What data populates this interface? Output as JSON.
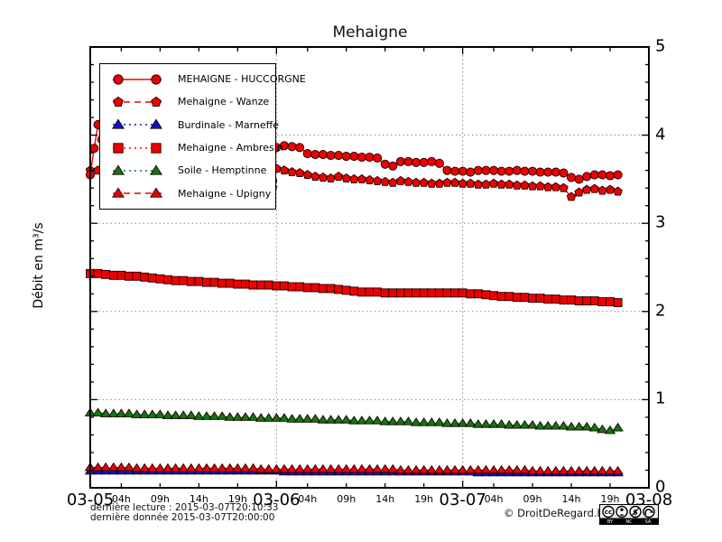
{
  "title": "Mehaigne",
  "y_axis": {
    "label": "Débit en m³/s",
    "min": 0,
    "max": 5,
    "ticks": [
      0,
      1,
      2,
      3,
      4,
      5
    ],
    "minor_step": 0.2,
    "gridlines": [
      1,
      2,
      3,
      4
    ]
  },
  "x_axis": {
    "date_labels": [
      "03-05",
      "03-06",
      "03-07",
      "03-08"
    ],
    "date_hours": [
      0,
      24,
      48,
      72
    ],
    "hour_labels": [
      "04h",
      "09h",
      "14h",
      "19h"
    ],
    "hour_offsets": [
      4,
      9,
      14,
      19
    ],
    "hours_span": 72,
    "grid_hours": [
      24,
      48
    ]
  },
  "legend": [
    {
      "label": "MEHAIGNE - HUCCORGNE",
      "marker": "circle",
      "line": "solid",
      "color": "#ee0000"
    },
    {
      "label": "Mehaigne - Wanze",
      "marker": "pentagon",
      "line": "dashed",
      "color": "#ee0000"
    },
    {
      "label": "Burdinale - Marneffe",
      "marker": "triangle",
      "line": "dotted",
      "color": "#1111cc"
    },
    {
      "label": "Mehaigne - Ambresin",
      "marker": "square",
      "line": "dotted",
      "color": "#ee0000"
    },
    {
      "label": "Soile - Hemptinne",
      "marker": "triangle",
      "line": "dotted",
      "color": "#117711"
    },
    {
      "label": "Mehaigne - Upigny",
      "marker": "triangle",
      "line": "dashed",
      "color": "#ee0000"
    }
  ],
  "footer": {
    "last_read": "dernière lecture : 2015-03-07T20:10:33",
    "last_data": "dernière donnée  2015-03-07T20:00:00",
    "copyright": "© DroitDeRegard.be",
    "cc_labels": [
      "BY",
      "NC",
      "SA"
    ]
  },
  "chart_data": {
    "type": "line",
    "title": "Mehaigne",
    "ylabel": "Débit en m³/s",
    "ylim": [
      0,
      5
    ],
    "x_unit": "hours since 2015-03-05T00:00",
    "xlim_hours": [
      0,
      72
    ],
    "grid": true,
    "legend_position": "upper-left",
    "series": [
      {
        "name": "MEHAIGNE - HUCCORGNE",
        "marker": "circle",
        "line": "solid",
        "color": "#ee0000",
        "points": [
          [
            0,
            3.55
          ],
          [
            0.5,
            3.85
          ],
          [
            1,
            4.12
          ],
          [
            1.5,
            3.95
          ],
          [
            2,
            3.9
          ],
          [
            3,
            3.89
          ],
          [
            4,
            3.88
          ],
          [
            5,
            3.87
          ],
          [
            6,
            3.86
          ],
          [
            7,
            3.85
          ],
          [
            8,
            3.84
          ],
          [
            9,
            3.83
          ],
          [
            10,
            3.82
          ],
          [
            11,
            3.81
          ],
          [
            12,
            3.8
          ],
          [
            13,
            3.79
          ],
          [
            14,
            3.78
          ],
          [
            15,
            3.77
          ],
          [
            16,
            3.76
          ],
          [
            17,
            3.75
          ],
          [
            18,
            3.74
          ],
          [
            19,
            3.73
          ],
          [
            20,
            3.71
          ],
          [
            21,
            3.68
          ],
          [
            22,
            3.62
          ],
          [
            23,
            3.55
          ],
          [
            23.5,
            3.48
          ],
          [
            24,
            3.86
          ],
          [
            25,
            3.88
          ],
          [
            26,
            3.87
          ],
          [
            27,
            3.86
          ],
          [
            28,
            3.79
          ],
          [
            29,
            3.78
          ],
          [
            30,
            3.78
          ],
          [
            31,
            3.77
          ],
          [
            32,
            3.77
          ],
          [
            33,
            3.76
          ],
          [
            34,
            3.76
          ],
          [
            35,
            3.75
          ],
          [
            36,
            3.75
          ],
          [
            37,
            3.74
          ],
          [
            38,
            3.67
          ],
          [
            39,
            3.65
          ],
          [
            40,
            3.7
          ],
          [
            41,
            3.7
          ],
          [
            42,
            3.69
          ],
          [
            43,
            3.69
          ],
          [
            44,
            3.7
          ],
          [
            45,
            3.68
          ],
          [
            46,
            3.6
          ],
          [
            47,
            3.59
          ],
          [
            48,
            3.59
          ],
          [
            49,
            3.58
          ],
          [
            50,
            3.6
          ],
          [
            51,
            3.6
          ],
          [
            52,
            3.6
          ],
          [
            53,
            3.59
          ],
          [
            54,
            3.59
          ],
          [
            55,
            3.6
          ],
          [
            56,
            3.59
          ],
          [
            57,
            3.59
          ],
          [
            58,
            3.58
          ],
          [
            59,
            3.58
          ],
          [
            60,
            3.58
          ],
          [
            61,
            3.57
          ],
          [
            62,
            3.52
          ],
          [
            63,
            3.5
          ],
          [
            64,
            3.53
          ],
          [
            65,
            3.55
          ],
          [
            66,
            3.55
          ],
          [
            67,
            3.54
          ],
          [
            68,
            3.55
          ]
        ]
      },
      {
        "name": "Mehaigne - Wanze",
        "marker": "pentagon",
        "line": "dashed",
        "color": "#ee0000",
        "points": [
          [
            0,
            3.6
          ],
          [
            1,
            3.6
          ],
          [
            2,
            3.59
          ],
          [
            3,
            3.58
          ],
          [
            4,
            3.57
          ],
          [
            5,
            3.57
          ],
          [
            6,
            3.56
          ],
          [
            7,
            3.55
          ],
          [
            8,
            3.55
          ],
          [
            9,
            3.54
          ],
          [
            10,
            3.54
          ],
          [
            11,
            3.53
          ],
          [
            12,
            3.53
          ],
          [
            13,
            3.52
          ],
          [
            14,
            3.52
          ],
          [
            15,
            3.51
          ],
          [
            16,
            3.51
          ],
          [
            17,
            3.51
          ],
          [
            18,
            3.5
          ],
          [
            19,
            3.5
          ],
          [
            20,
            3.5
          ],
          [
            21,
            3.5
          ],
          [
            22,
            3.49
          ],
          [
            23,
            3.49
          ],
          [
            23.5,
            3.4
          ],
          [
            24,
            3.62
          ],
          [
            25,
            3.6
          ],
          [
            26,
            3.58
          ],
          [
            27,
            3.57
          ],
          [
            28,
            3.55
          ],
          [
            29,
            3.53
          ],
          [
            30,
            3.52
          ],
          [
            31,
            3.51
          ],
          [
            32,
            3.53
          ],
          [
            33,
            3.51
          ],
          [
            34,
            3.5
          ],
          [
            35,
            3.5
          ],
          [
            36,
            3.49
          ],
          [
            37,
            3.48
          ],
          [
            38,
            3.47
          ],
          [
            39,
            3.46
          ],
          [
            40,
            3.48
          ],
          [
            41,
            3.47
          ],
          [
            42,
            3.46
          ],
          [
            43,
            3.46
          ],
          [
            44,
            3.45
          ],
          [
            45,
            3.45
          ],
          [
            46,
            3.46
          ],
          [
            47,
            3.46
          ],
          [
            48,
            3.45
          ],
          [
            49,
            3.45
          ],
          [
            50,
            3.44
          ],
          [
            51,
            3.44
          ],
          [
            52,
            3.45
          ],
          [
            53,
            3.44
          ],
          [
            54,
            3.44
          ],
          [
            55,
            3.43
          ],
          [
            56,
            3.43
          ],
          [
            57,
            3.42
          ],
          [
            58,
            3.42
          ],
          [
            59,
            3.41
          ],
          [
            60,
            3.41
          ],
          [
            61,
            3.4
          ],
          [
            62,
            3.3
          ],
          [
            63,
            3.35
          ],
          [
            64,
            3.38
          ],
          [
            65,
            3.39
          ],
          [
            66,
            3.37
          ],
          [
            67,
            3.38
          ],
          [
            68,
            3.36
          ]
        ]
      },
      {
        "name": "Mehaigne - Ambresin",
        "marker": "square",
        "line": "dotted",
        "color": "#ee0000",
        "start_hour": 0,
        "step_hours": 1,
        "values": [
          2.43,
          2.43,
          2.42,
          2.41,
          2.41,
          2.4,
          2.4,
          2.39,
          2.38,
          2.37,
          2.36,
          2.35,
          2.35,
          2.34,
          2.34,
          2.33,
          2.33,
          2.32,
          2.32,
          2.31,
          2.31,
          2.3,
          2.3,
          2.3,
          2.29,
          2.29,
          2.28,
          2.28,
          2.27,
          2.27,
          2.26,
          2.26,
          2.25,
          2.24,
          2.23,
          2.22,
          2.22,
          2.22,
          2.21,
          2.21,
          2.21,
          2.21,
          2.21,
          2.21,
          2.21,
          2.21,
          2.21,
          2.21,
          2.21,
          2.2,
          2.2,
          2.19,
          2.18,
          2.17,
          2.17,
          2.16,
          2.16,
          2.15,
          2.15,
          2.14,
          2.14,
          2.13,
          2.13,
          2.12,
          2.12,
          2.12,
          2.11,
          2.11,
          2.1
        ]
      },
      {
        "name": "Soile - Hemptinne",
        "marker": "triangle",
        "line": "dotted",
        "color": "#117711",
        "start_hour": 0,
        "step_hours": 1,
        "values": [
          0.85,
          0.85,
          0.84,
          0.84,
          0.84,
          0.84,
          0.83,
          0.83,
          0.83,
          0.83,
          0.82,
          0.82,
          0.82,
          0.82,
          0.81,
          0.81,
          0.81,
          0.81,
          0.8,
          0.8,
          0.8,
          0.8,
          0.79,
          0.79,
          0.79,
          0.79,
          0.78,
          0.78,
          0.78,
          0.78,
          0.77,
          0.77,
          0.77,
          0.77,
          0.76,
          0.76,
          0.76,
          0.76,
          0.75,
          0.75,
          0.75,
          0.75,
          0.74,
          0.74,
          0.74,
          0.74,
          0.73,
          0.73,
          0.73,
          0.73,
          0.72,
          0.72,
          0.72,
          0.72,
          0.71,
          0.71,
          0.71,
          0.71,
          0.7,
          0.7,
          0.7,
          0.7,
          0.69,
          0.69,
          0.69,
          0.68,
          0.66,
          0.65,
          0.68
        ]
      },
      {
        "name": "Burdinale - Marneffe",
        "marker": "triangle",
        "line": "dotted",
        "color": "#1111cc",
        "start_hour": 0,
        "step_hours": 1,
        "values": [
          0.19,
          0.19,
          0.19,
          0.19,
          0.19,
          0.19,
          0.19,
          0.19,
          0.19,
          0.19,
          0.19,
          0.19,
          0.19,
          0.19,
          0.19,
          0.19,
          0.19,
          0.19,
          0.19,
          0.19,
          0.19,
          0.19,
          0.19,
          0.19,
          0.19,
          0.18,
          0.18,
          0.18,
          0.18,
          0.18,
          0.18,
          0.18,
          0.18,
          0.18,
          0.18,
          0.18,
          0.18,
          0.18,
          0.18,
          0.18,
          0.18,
          0.18,
          0.18,
          0.18,
          0.18,
          0.18,
          0.18,
          0.18,
          0.18,
          0.18,
          0.17,
          0.17,
          0.17,
          0.17,
          0.17,
          0.17,
          0.17,
          0.17,
          0.17,
          0.17,
          0.17,
          0.17,
          0.17,
          0.17,
          0.17,
          0.17,
          0.17,
          0.17,
          0.17
        ]
      },
      {
        "name": "Mehaigne - Upigny",
        "marker": "triangle",
        "line": "dashed",
        "color": "#ee0000",
        "start_hour": 0,
        "step_hours": 1,
        "values": [
          0.23,
          0.23,
          0.23,
          0.23,
          0.23,
          0.23,
          0.22,
          0.22,
          0.22,
          0.22,
          0.22,
          0.22,
          0.22,
          0.22,
          0.22,
          0.22,
          0.22,
          0.22,
          0.22,
          0.22,
          0.22,
          0.22,
          0.21,
          0.21,
          0.21,
          0.21,
          0.21,
          0.21,
          0.21,
          0.21,
          0.21,
          0.21,
          0.21,
          0.21,
          0.21,
          0.21,
          0.21,
          0.21,
          0.21,
          0.21,
          0.2,
          0.2,
          0.2,
          0.2,
          0.2,
          0.2,
          0.2,
          0.2,
          0.2,
          0.2,
          0.2,
          0.2,
          0.2,
          0.2,
          0.2,
          0.2,
          0.2,
          0.19,
          0.19,
          0.19,
          0.19,
          0.19,
          0.19,
          0.19,
          0.19,
          0.19,
          0.19,
          0.19,
          0.19
        ]
      }
    ]
  }
}
